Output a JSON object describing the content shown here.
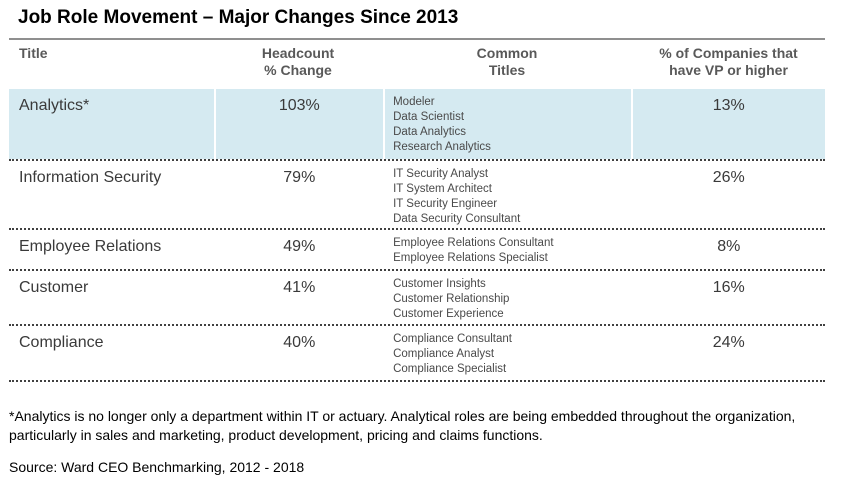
{
  "title": "Job Role Movement – Major Changes Since 2013",
  "headers": {
    "title": "Title",
    "headcount_line1": "Headcount",
    "headcount_line2": "% Change",
    "common_line1": "Common",
    "common_line2": "Titles",
    "vp_line1": "% of Companies that",
    "vp_line2": "have VP or higher"
  },
  "rows": [
    {
      "title": "Analytics*",
      "headcount_change": "103%",
      "common_titles": [
        "Modeler",
        "Data Scientist",
        "Data Analytics",
        "Research Analytics"
      ],
      "vp_pct": "13%",
      "highlighted": true
    },
    {
      "title": "Information Security",
      "headcount_change": "79%",
      "common_titles": [
        "IT Security Analyst",
        "IT System Architect",
        "IT Security Engineer",
        "Data Security Consultant"
      ],
      "vp_pct": "26%",
      "highlighted": false
    },
    {
      "title": "Employee Relations",
      "headcount_change": "49%",
      "common_titles": [
        "Employee Relations Consultant",
        "Employee Relations Specialist"
      ],
      "vp_pct": "8%",
      "highlighted": false
    },
    {
      "title": "Customer",
      "headcount_change": "41%",
      "common_titles": [
        "Customer Insights",
        "Customer Relationship",
        "Customer Experience"
      ],
      "vp_pct": "16%",
      "highlighted": false
    },
    {
      "title": "Compliance",
      "headcount_change": "40%",
      "common_titles": [
        "Compliance Consultant",
        "Compliance Analyst",
        "Compliance Specialist"
      ],
      "vp_pct": "24%",
      "highlighted": false
    }
  ],
  "footnote": "*Analytics is no longer only a department within IT or actuary. Analytical roles are being embedded throughout the organization, particularly in sales and marketing, product development, pricing and claims functions.",
  "source": "Source: Ward CEO Benchmarking, 2012 - 2018",
  "colors": {
    "highlight_row": "#d5eaf1",
    "header_text": "#595959",
    "rule": "#8f8f8f"
  }
}
